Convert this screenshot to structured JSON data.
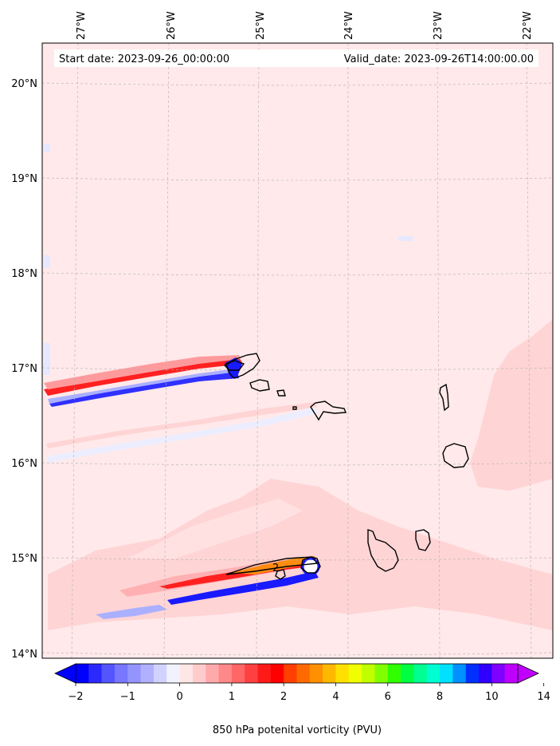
{
  "map": {
    "start_label": "Start date: 2023-09-26_00:00:00",
    "valid_label": "Valid_date: 2023-09-26T14:00:00.00",
    "lon_ticks": [
      "27°W",
      "26°W",
      "25°W",
      "24°W",
      "23°W",
      "22°W"
    ],
    "lat_ticks": [
      "20°N",
      "19°N",
      "18°N",
      "17°N",
      "16°N",
      "15°N",
      "14°N"
    ],
    "colors": {
      "background_field": "#ffe9ea",
      "light_pink": "#ffd4d5",
      "mid_pink": "#ffb0b2",
      "red": "#ff2020",
      "dark_red": "#ff0000",
      "orange": "#ff8c10",
      "blue": "#1a1aff",
      "light_blue": "#aab0ff",
      "very_light_blue": "#e6e8ff",
      "coast": "#000000",
      "grid": "#b0b0b0"
    }
  },
  "colorbar": {
    "label": "850 hPa potenital vorticity (PVU)",
    "tick_labels": [
      "−2",
      "−1",
      "0",
      "1",
      "2",
      "4",
      "6",
      "8",
      "10",
      "14"
    ],
    "colors": [
      "#0000ff",
      "#2a2aff",
      "#5555ff",
      "#7777ff",
      "#9494ff",
      "#b0b0ff",
      "#d2d2ff",
      "#f2f2ff",
      "#ffe6e6",
      "#ffcccc",
      "#ffaaaa",
      "#ff8888",
      "#ff6666",
      "#ff4040",
      "#ff1a1a",
      "#ff0000",
      "#ff4000",
      "#ff6a00",
      "#ff9000",
      "#ffb800",
      "#ffe000",
      "#f0ff00",
      "#c0ff00",
      "#80ff00",
      "#30ff00",
      "#00ff40",
      "#00ff90",
      "#00ffd0",
      "#00e0ff",
      "#0090ff",
      "#0030ff",
      "#3000ff",
      "#8000ff",
      "#c000ff"
    ]
  }
}
